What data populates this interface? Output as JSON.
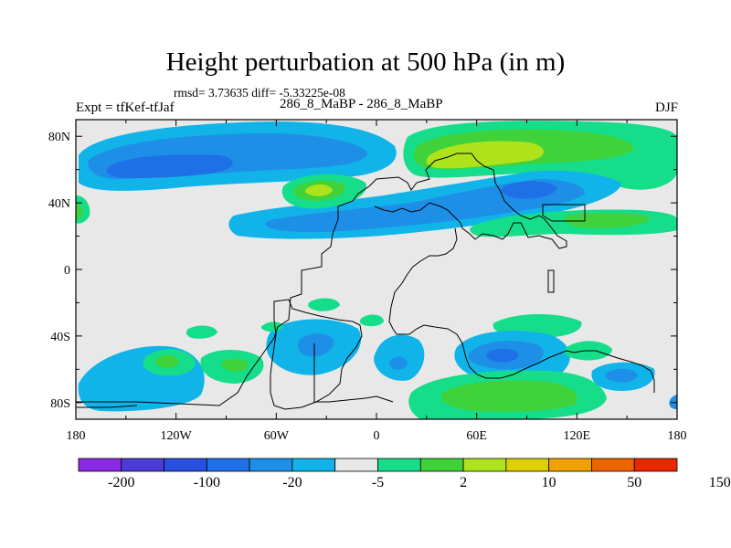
{
  "title": "Height perturbation at 500 hPa (in m)",
  "stats": "rmsd= 3.73635 diff= -5.33225e-08",
  "left_label": "Expt = tfKef-tfJaf",
  "center_label": "286_8_MaBP - 286_8_MaBP",
  "right_label": "DJF",
  "x_ticks": [
    {
      "lon": -180,
      "label": "180"
    },
    {
      "lon": -120,
      "label": "120W"
    },
    {
      "lon": -60,
      "label": "60W"
    },
    {
      "lon": 0,
      "label": "0"
    },
    {
      "lon": 60,
      "label": "60E"
    },
    {
      "lon": 120,
      "label": "120E"
    },
    {
      "lon": 180,
      "label": "180"
    }
  ],
  "y_ticks": [
    {
      "lat": 80,
      "label": "80N"
    },
    {
      "lat": 40,
      "label": "40N"
    },
    {
      "lat": 0,
      "label": "0"
    },
    {
      "lat": -40,
      "label": "40S"
    },
    {
      "lat": -80,
      "label": "80S"
    }
  ],
  "colorbar": {
    "colors": [
      "#8a2be2",
      "#4b3cd6",
      "#2a4fe0",
      "#1f6fe6",
      "#1e8fe6",
      "#10b4e8",
      "#e8e8e8",
      "#16dd8a",
      "#40d23a",
      "#aee21a",
      "#ddd000",
      "#f0a000",
      "#ee6400",
      "#e82800"
    ],
    "labels": [
      {
        "after_box": 1,
        "text": "-200"
      },
      {
        "after_box": 3,
        "text": "-100"
      },
      {
        "after_box": 5,
        "text": "-20"
      },
      {
        "after_box": 7,
        "text": "-5"
      },
      {
        "after_box": 9,
        "text": "2"
      },
      {
        "after_box": 11,
        "text": "10"
      },
      {
        "after_box": 13,
        "text": "50"
      },
      {
        "after_box": 15,
        "text": "150"
      }
    ]
  },
  "field_colors": {
    "neutral": "#e8e8e8",
    "cyan": "#10b4e8",
    "blue1": "#1e8fe6",
    "blue2": "#1f6fe6",
    "green_light": "#16dd8a",
    "green": "#40d23a",
    "yellow_green": "#aee21a"
  }
}
